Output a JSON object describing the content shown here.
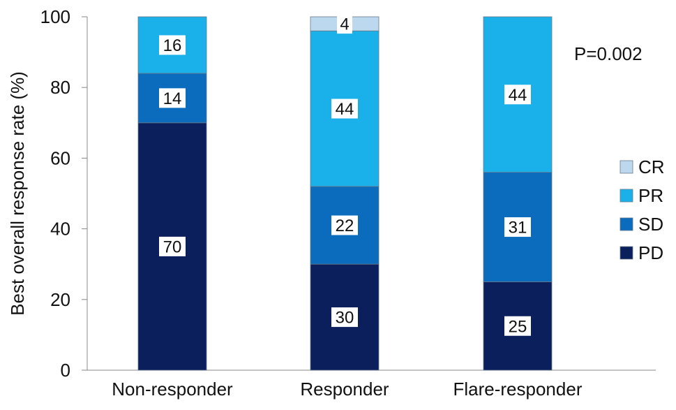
{
  "chart_data": {
    "type": "bar",
    "stacked": true,
    "categories": [
      "Non-responder",
      "Responder",
      "Flare-responder"
    ],
    "series": [
      {
        "name": "PD",
        "values": [
          70,
          30,
          25
        ],
        "color": "#0b1f5c"
      },
      {
        "name": "SD",
        "values": [
          14,
          22,
          31
        ],
        "color": "#0b6bbd"
      },
      {
        "name": "PR",
        "values": [
          16,
          44,
          44
        ],
        "color": "#1ab0ea"
      },
      {
        "name": "CR",
        "values": [
          0,
          4,
          0
        ],
        "color": "#bcd8ee"
      }
    ],
    "ylabel": "Best overall response rate (%)",
    "xlabel": "",
    "ylim": [
      0,
      100
    ],
    "yticks": [
      0,
      20,
      40,
      60,
      80,
      100
    ],
    "grid": false,
    "legend": {
      "position": "right",
      "order": [
        "CR",
        "PR",
        "SD",
        "PD"
      ]
    },
    "annotation": "P=0.002"
  }
}
